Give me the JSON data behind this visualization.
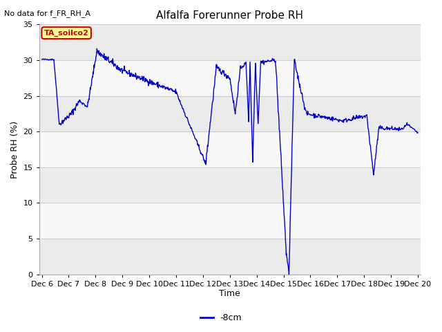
{
  "title": "Alfalfa Forerunner Probe RH",
  "no_data_label": "No data for f_FR_RH_A",
  "ylabel": "Probe RH (%)",
  "xlabel": "Time",
  "legend_label": "-8cm",
  "legend_color": "#0000cc",
  "box_label": "TA_soilco2",
  "box_facecolor": "#ffff99",
  "box_edgecolor": "#cc0000",
  "box_textcolor": "#cc0000",
  "ylim": [
    0,
    35
  ],
  "yticks": [
    0,
    5,
    10,
    15,
    20,
    25,
    30,
    35
  ],
  "line_color": "#0000cc",
  "bg_color": "#ffffff",
  "plot_bg_light": "#f0f0f0",
  "plot_bg_dark": "#e0e0e0",
  "grid_color": "#c8c8c8",
  "title_fontsize": 11,
  "label_fontsize": 9,
  "tick_fontsize": 8,
  "xtick_labels": [
    "Dec 6",
    "Dec 7",
    "Dec 8",
    "Dec 9",
    "Dec 10",
    "Dec 11",
    "Dec 12",
    "Dec 13",
    "Dec 14",
    "Dec 15",
    "Dec 16",
    "Dec 17",
    "Dec 18",
    "Dec 19",
    "Dec 20"
  ],
  "x_positions": [
    0,
    1,
    2,
    3,
    4,
    5,
    6,
    7,
    8,
    9,
    10,
    11,
    12,
    13,
    14
  ]
}
